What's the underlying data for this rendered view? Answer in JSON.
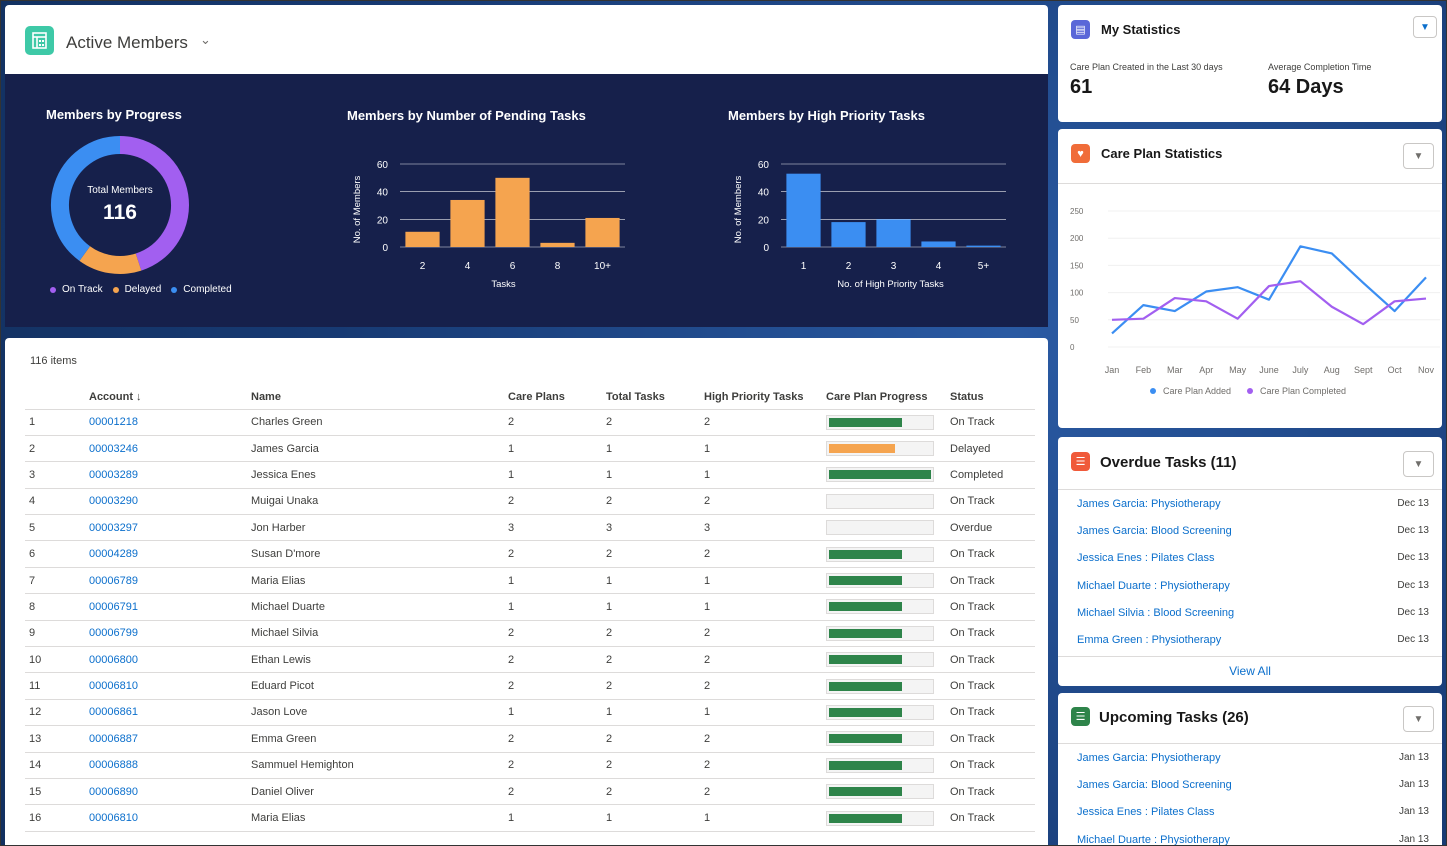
{
  "header": {
    "title": "Active Members"
  },
  "progress_chart": {
    "title": "Members by Progress",
    "center_label": "Total Members",
    "center_value": "116",
    "legend": [
      "On Track",
      "Delayed",
      "Completed"
    ],
    "colors": {
      "on_track": "#a25ff0",
      "delayed": "#f5a44f",
      "completed": "#3b8ef2"
    }
  },
  "pending_chart": {
    "title": "Members by Number of Pending Tasks",
    "ylabel": "No. of Members",
    "xlabel": "Tasks"
  },
  "priority_chart": {
    "title": "Members by High Priority Tasks",
    "ylabel": "No. of Members",
    "xlabel": "No. of High Priority Tasks"
  },
  "chart_data": [
    {
      "type": "pie",
      "title": "Members by Progress",
      "categories": [
        "On Track",
        "Delayed",
        "Completed"
      ],
      "values": [
        45,
        15,
        40
      ],
      "colors": [
        "#a25ff0",
        "#f5a44f",
        "#3b8ef2"
      ]
    },
    {
      "type": "bar",
      "title": "Members by Number of Pending Tasks",
      "categories": [
        "2",
        "4",
        "6",
        "8",
        "10+"
      ],
      "values": [
        11,
        34,
        50,
        3,
        21
      ],
      "xlabel": "Tasks",
      "ylabel": "No. of Members",
      "ylim": [
        0,
        60
      ],
      "yticks": [
        "0",
        "20",
        "40",
        "60"
      ],
      "color": "#f5a44f"
    },
    {
      "type": "bar",
      "title": "Members by High Priority Tasks",
      "categories": [
        "1",
        "2",
        "3",
        "4",
        "5+"
      ],
      "values": [
        53,
        18,
        20,
        4,
        1
      ],
      "xlabel": "No. of High Priority Tasks",
      "ylabel": "No. of Members",
      "ylim": [
        0,
        60
      ],
      "yticks": [
        "0",
        "20",
        "40",
        "60"
      ],
      "color": "#3b8ef2"
    },
    {
      "type": "line",
      "title": "",
      "categories": [
        "Jan",
        "Feb",
        "Mar",
        "Apr",
        "May",
        "June",
        "July",
        "Aug",
        "Sept",
        "Oct",
        "Nov"
      ],
      "ylim": [
        0,
        250
      ],
      "yticks": [
        "0",
        "50",
        "100",
        "150",
        "200",
        "250"
      ],
      "series": [
        {
          "name": "Care Plan Added",
          "values": [
            25,
            77,
            66,
            102,
            110,
            87,
            185,
            172,
            118,
            66,
            128
          ],
          "color": "#3b8ef2"
        },
        {
          "name": "Care Plan Completed",
          "values": [
            50,
            52,
            90,
            84,
            52,
            112,
            121,
            74,
            42,
            84,
            89
          ],
          "color": "#a25ff0"
        }
      ]
    }
  ],
  "table": {
    "count_label": "116 items",
    "columns": [
      "Account ↓",
      "Name",
      "Care Plans",
      "Total Tasks",
      "High Priority Tasks",
      "Care Plan Progress",
      "Status"
    ],
    "rows": [
      {
        "n": "1",
        "account": "00001218",
        "name": "Charles Green",
        "plans": "2",
        "total": "2",
        "high": "2",
        "progress": 0.7,
        "color": "#2e844a",
        "status": "On Track"
      },
      {
        "n": "2",
        "account": "00003246",
        "name": "James Garcia",
        "plans": "1",
        "total": "1",
        "high": "1",
        "progress": 0.63,
        "color": "#f5a44f",
        "status": "Delayed"
      },
      {
        "n": "3",
        "account": "00003289",
        "name": "Jessica Enes",
        "plans": "1",
        "total": "1",
        "high": "1",
        "progress": 0.98,
        "color": "#2e844a",
        "status": "Completed"
      },
      {
        "n": "4",
        "account": "00003290",
        "name": "Muigai Unaka",
        "plans": "2",
        "total": "2",
        "high": "2",
        "progress": 0,
        "color": "#2e844a",
        "status": "On Track"
      },
      {
        "n": "5",
        "account": "00003297",
        "name": "Jon Harber",
        "plans": "3",
        "total": "3",
        "high": "3",
        "progress": 0,
        "color": "#2e844a",
        "status": "Overdue"
      },
      {
        "n": "6",
        "account": "00004289",
        "name": "Susan D'more",
        "plans": "2",
        "total": "2",
        "high": "2",
        "progress": 0.7,
        "color": "#2e844a",
        "status": "On Track"
      },
      {
        "n": "7",
        "account": "00006789",
        "name": "Maria Elias",
        "plans": "1",
        "total": "1",
        "high": "1",
        "progress": 0.7,
        "color": "#2e844a",
        "status": "On Track"
      },
      {
        "n": "8",
        "account": "00006791",
        "name": "Michael Duarte",
        "plans": "1",
        "total": "1",
        "high": "1",
        "progress": 0.7,
        "color": "#2e844a",
        "status": "On Track"
      },
      {
        "n": "9",
        "account": "00006799",
        "name": "Michael Silvia",
        "plans": "2",
        "total": "2",
        "high": "2",
        "progress": 0.7,
        "color": "#2e844a",
        "status": "On Track"
      },
      {
        "n": "10",
        "account": "00006800",
        "name": "Ethan Lewis",
        "plans": "2",
        "total": "2",
        "high": "2",
        "progress": 0.7,
        "color": "#2e844a",
        "status": "On Track"
      },
      {
        "n": "11",
        "account": "00006810",
        "name": "Eduard Picot",
        "plans": "2",
        "total": "2",
        "high": "2",
        "progress": 0.7,
        "color": "#2e844a",
        "status": "On Track"
      },
      {
        "n": "12",
        "account": "00006861",
        "name": "Jason Love",
        "plans": "1",
        "total": "1",
        "high": "1",
        "progress": 0.7,
        "color": "#2e844a",
        "status": "On Track"
      },
      {
        "n": "13",
        "account": "00006887",
        "name": "Emma Green",
        "plans": "2",
        "total": "2",
        "high": "2",
        "progress": 0.7,
        "color": "#2e844a",
        "status": "On Track"
      },
      {
        "n": "14",
        "account": "00006888",
        "name": "Sammuel Hemighton",
        "plans": "2",
        "total": "2",
        "high": "2",
        "progress": 0.7,
        "color": "#2e844a",
        "status": "On Track"
      },
      {
        "n": "15",
        "account": "00006890",
        "name": "Daniel Oliver",
        "plans": "2",
        "total": "2",
        "high": "2",
        "progress": 0.7,
        "color": "#2e844a",
        "status": "On Track"
      },
      {
        "n": "16",
        "account": "00006810",
        "name": "Maria Elias",
        "plans": "1",
        "total": "1",
        "high": "1",
        "progress": 0.7,
        "color": "#2e844a",
        "status": "On Track"
      }
    ]
  },
  "my_stats": {
    "title": "My Statistics",
    "stat1_label": "Care Plan Created in the Last 30 days",
    "stat1_value": "61",
    "stat2_label": "Average Completion Time",
    "stat2_value": "64 Days"
  },
  "care_plan_stats": {
    "title": "Care Plan Statistics"
  },
  "overdue": {
    "title": "Overdue Tasks (11)",
    "view_all": "View All",
    "tasks": [
      {
        "name": "James Garcia: Physiotherapy",
        "date": "Dec 13"
      },
      {
        "name": "James Garcia: Blood Screening",
        "date": "Dec 13"
      },
      {
        "name": "Jessica Enes : Pilates Class",
        "date": "Dec 13"
      },
      {
        "name": "Michael Duarte : Physiotherapy",
        "date": "Dec 13"
      },
      {
        "name": "Michael Silvia : Blood Screening",
        "date": "Dec 13"
      },
      {
        "name": "Emma Green : Physiotherapy",
        "date": "Dec 13"
      }
    ]
  },
  "upcoming": {
    "title": "Upcoming Tasks (26)",
    "tasks": [
      {
        "name": "James Garcia: Physiotherapy",
        "date": "Jan 13"
      },
      {
        "name": "James Garcia: Blood Screening",
        "date": "Jan 13"
      },
      {
        "name": "Jessica Enes : Pilates Class",
        "date": "Jan 13"
      },
      {
        "name": "Michael Duarte : Physiotherapy",
        "date": "Jan 13"
      }
    ]
  }
}
